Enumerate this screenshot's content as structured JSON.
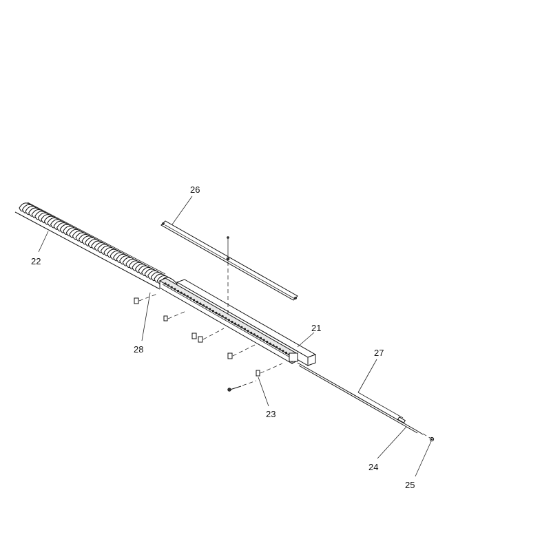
{
  "diagram": {
    "callouts": [
      {
        "id": "21",
        "label": "21"
      },
      {
        "id": "22",
        "label": "22"
      },
      {
        "id": "23",
        "label": "23"
      },
      {
        "id": "24",
        "label": "24"
      },
      {
        "id": "25",
        "label": "25"
      },
      {
        "id": "26",
        "label": "26"
      },
      {
        "id": "27",
        "label": "27"
      },
      {
        "id": "28",
        "label": "28"
      }
    ]
  }
}
